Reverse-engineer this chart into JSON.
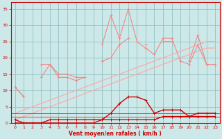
{
  "x": [
    0,
    1,
    2,
    3,
    4,
    5,
    6,
    7,
    8,
    9,
    10,
    11,
    12,
    13,
    14,
    15,
    16,
    17,
    18,
    19,
    20,
    21,
    22,
    23
  ],
  "rafales_line": [
    11,
    8,
    null,
    14,
    18,
    14,
    14,
    13,
    14,
    null,
    24,
    33,
    26,
    35,
    25,
    23,
    21,
    26,
    26,
    19,
    18,
    24,
    18,
    18
  ],
  "moyen_line": [
    11,
    8,
    null,
    18,
    18,
    15,
    15,
    14,
    14,
    null,
    19,
    20,
    24,
    26,
    null,
    24,
    null,
    25,
    25,
    null,
    19,
    27,
    18,
    18
  ],
  "trend_upper": [
    3,
    4,
    5,
    6,
    7,
    8,
    9,
    10,
    11,
    12,
    13,
    14,
    15,
    16,
    17,
    18,
    19,
    20,
    21,
    22,
    23,
    24,
    25,
    25
  ],
  "trend_lower": [
    1,
    2,
    3,
    4,
    5,
    6,
    7,
    8,
    9,
    10,
    11,
    12,
    13,
    14,
    15,
    16,
    17,
    18,
    19,
    20,
    21,
    22,
    23,
    23
  ],
  "wind_gusts": [
    1,
    0,
    0,
    0,
    1,
    1,
    1,
    1,
    1,
    1,
    1,
    3,
    6,
    8,
    8,
    7,
    3,
    4,
    4,
    4,
    2,
    3,
    3,
    3
  ],
  "wind_avg": [
    0,
    0,
    0,
    0,
    0,
    0,
    0,
    0,
    0,
    0,
    1,
    1,
    1,
    1,
    1,
    1,
    1,
    2,
    2,
    2,
    2,
    2,
    2,
    2
  ],
  "bg_color": "#cce8e8",
  "grid_color": "#88bbbb",
  "line_color_dark": "#cc0000",
  "line_color_light": "#ee8888",
  "line_color_lighter": "#ffaaaa",
  "xlabel": "Vent moyen/en rafales ( km/h )",
  "ylim": [
    0,
    37
  ],
  "xlim": [
    -0.5,
    23.5
  ],
  "yticks": [
    0,
    5,
    10,
    15,
    20,
    25,
    30,
    35
  ],
  "xticks": [
    0,
    1,
    2,
    3,
    4,
    5,
    6,
    7,
    8,
    9,
    10,
    11,
    12,
    13,
    14,
    15,
    16,
    17,
    18,
    19,
    20,
    21,
    22,
    23
  ]
}
